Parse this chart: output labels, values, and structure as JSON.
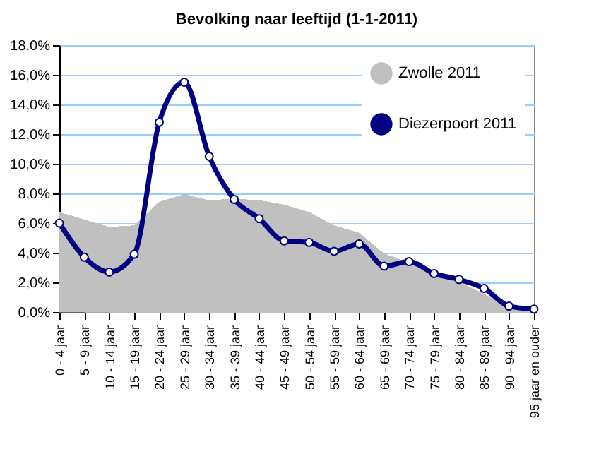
{
  "chart_data": {
    "type": "line",
    "title": "Bevolking naar leeftijd (1-1-2011)",
    "categories": [
      "0 - 4 jaar",
      "5 - 9 jaar",
      "10 - 14 jaar",
      "15 - 19 jaar",
      "20 - 24 jaar",
      "25 - 29 jaar",
      "30 - 34 jaar",
      "35 - 39 jaar",
      "40 - 44 jaar",
      "45 - 49 jaar",
      "50 - 54 jaar",
      "55 - 59 jaar",
      "60 - 64 jaar",
      "65 - 69 jaar",
      "70 - 74 jaar",
      "75 - 79 jaar",
      "80 - 84 jaar",
      "85 - 89 jaar",
      "90 - 94 jaar",
      "95 jaar en ouder"
    ],
    "series": [
      {
        "name": "Zwolle 2011",
        "type": "area",
        "color": "#c0c0c0",
        "values": [
          6.7,
          6.2,
          5.7,
          5.8,
          7.4,
          7.9,
          7.5,
          7.6,
          7.5,
          7.2,
          6.7,
          5.8,
          5.3,
          3.9,
          3.3,
          2.5,
          2.0,
          1.2,
          0.3,
          0.1
        ]
      },
      {
        "name": "Diezerpoort 2011",
        "color": "#000080",
        "marker": "circle",
        "values": [
          6.0,
          3.7,
          2.7,
          3.9,
          12.8,
          15.5,
          10.5,
          7.6,
          6.3,
          4.8,
          4.7,
          4.1,
          4.6,
          3.1,
          3.4,
          2.6,
          2.2,
          1.6,
          0.4,
          0.2
        ]
      }
    ],
    "ylim": [
      0,
      18
    ],
    "yticks": [
      {
        "value": 0,
        "label": "0,0%"
      },
      {
        "value": 2,
        "label": "2,0%"
      },
      {
        "value": 4,
        "label": "4,0%"
      },
      {
        "value": 6,
        "label": "6,0%"
      },
      {
        "value": 8,
        "label": "8,0%"
      },
      {
        "value": 10,
        "label": "10,0%"
      },
      {
        "value": 12,
        "label": "12,0%"
      },
      {
        "value": 14,
        "label": "14,0%"
      },
      {
        "value": 16,
        "label": "16,0%"
      },
      {
        "value": 18,
        "label": "18,0%"
      }
    ],
    "grid": "y",
    "legend": "top right"
  }
}
